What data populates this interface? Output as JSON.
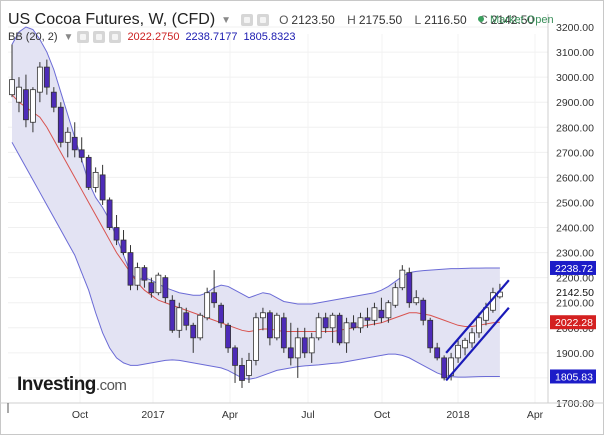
{
  "header": {
    "title": "US Cocoa Futures, W, (CFD)",
    "ohlc": [
      {
        "k": "O",
        "v": "2123.50"
      },
      {
        "k": "H",
        "v": "2175.50"
      },
      {
        "k": "L",
        "v": "2116.50"
      },
      {
        "k": "C",
        "v": "2142.50"
      }
    ],
    "market_status": "Market Open",
    "bb_label": "BB (20, 2)",
    "bb_basis": "2022.2750",
    "bb_upper": "2238.7177",
    "bb_lower": "1805.8323"
  },
  "logo": {
    "name": "Investing",
    "suffix": ".com"
  },
  "colors": {
    "bull": "#ffffff",
    "bear": "#4d2bb8",
    "band_fill": "#e3e3f3",
    "band_line": "#6b6bd6",
    "basis_line": "#d9534f",
    "trend_line": "#1a1ab8",
    "market_dot": "#3aa05e"
  },
  "chart_data": {
    "type": "candlestick",
    "title": "US Cocoa Futures, W, (CFD)",
    "x_tick_labels": [
      {
        "label": "Oct",
        "date": "2016-10"
      },
      {
        "label": "2017",
        "date": "2017-01"
      },
      {
        "label": "Apr",
        "date": "2017-04"
      },
      {
        "label": "Jul",
        "date": "2017-07"
      },
      {
        "label": "Oct",
        "date": "2017-10"
      },
      {
        "label": "2018",
        "date": "2018-01"
      },
      {
        "label": "Apr",
        "date": "2018-04"
      }
    ],
    "y_ticks": [
      1700,
      1800,
      1900,
      2000,
      2100,
      2200,
      2300,
      2400,
      2500,
      2600,
      2700,
      2800,
      2900,
      3000,
      3100,
      3200
    ],
    "ylim": [
      1650,
      3265
    ],
    "price_markers": [
      {
        "label": "2238.72",
        "value": 2238.72,
        "kind": "bb_upper"
      },
      {
        "label": "2142.50",
        "value": 2142.5,
        "kind": "last"
      },
      {
        "label": "2022.28",
        "value": 2022.28,
        "kind": "bb_basis"
      },
      {
        "label": "1805.83",
        "value": 1805.83,
        "kind": "bb_lower"
      }
    ],
    "candles": [
      {
        "o": 2930,
        "h": 3130,
        "l": 2920,
        "c": 2990
      },
      {
        "o": 2900,
        "h": 3000,
        "l": 2860,
        "c": 2960
      },
      {
        "o": 2950,
        "h": 3010,
        "l": 2800,
        "c": 2830
      },
      {
        "o": 2820,
        "h": 2960,
        "l": 2780,
        "c": 2950
      },
      {
        "o": 2940,
        "h": 3060,
        "l": 2900,
        "c": 3040
      },
      {
        "o": 3040,
        "h": 3070,
        "l": 2930,
        "c": 2960
      },
      {
        "o": 2940,
        "h": 2960,
        "l": 2860,
        "c": 2880
      },
      {
        "o": 2880,
        "h": 2900,
        "l": 2720,
        "c": 2740
      },
      {
        "o": 2740,
        "h": 2800,
        "l": 2680,
        "c": 2780
      },
      {
        "o": 2760,
        "h": 2820,
        "l": 2680,
        "c": 2710
      },
      {
        "o": 2710,
        "h": 2760,
        "l": 2660,
        "c": 2680
      },
      {
        "o": 2680,
        "h": 2690,
        "l": 2550,
        "c": 2560
      },
      {
        "o": 2560,
        "h": 2640,
        "l": 2540,
        "c": 2620
      },
      {
        "o": 2610,
        "h": 2650,
        "l": 2490,
        "c": 2510
      },
      {
        "o": 2510,
        "h": 2520,
        "l": 2390,
        "c": 2400
      },
      {
        "o": 2400,
        "h": 2450,
        "l": 2330,
        "c": 2350
      },
      {
        "o": 2350,
        "h": 2390,
        "l": 2290,
        "c": 2300
      },
      {
        "o": 2300,
        "h": 2330,
        "l": 2150,
        "c": 2170
      },
      {
        "o": 2170,
        "h": 2260,
        "l": 2150,
        "c": 2240
      },
      {
        "o": 2240,
        "h": 2250,
        "l": 2160,
        "c": 2190
      },
      {
        "o": 2180,
        "h": 2200,
        "l": 2120,
        "c": 2140
      },
      {
        "o": 2140,
        "h": 2220,
        "l": 2130,
        "c": 2210
      },
      {
        "o": 2200,
        "h": 2210,
        "l": 2100,
        "c": 2120
      },
      {
        "o": 2110,
        "h": 2130,
        "l": 1980,
        "c": 1990
      },
      {
        "o": 1990,
        "h": 2100,
        "l": 1960,
        "c": 2080
      },
      {
        "o": 2060,
        "h": 2080,
        "l": 1990,
        "c": 2010
      },
      {
        "o": 2010,
        "h": 2020,
        "l": 1900,
        "c": 1960
      },
      {
        "o": 1960,
        "h": 2060,
        "l": 1950,
        "c": 2050
      },
      {
        "o": 2040,
        "h": 2160,
        "l": 2030,
        "c": 2140
      },
      {
        "o": 2140,
        "h": 2230,
        "l": 2080,
        "c": 2100
      },
      {
        "o": 2090,
        "h": 2100,
        "l": 2000,
        "c": 2020
      },
      {
        "o": 2010,
        "h": 2020,
        "l": 1900,
        "c": 1920
      },
      {
        "o": 1920,
        "h": 1930,
        "l": 1780,
        "c": 1850
      },
      {
        "o": 1850,
        "h": 1880,
        "l": 1760,
        "c": 1790
      },
      {
        "o": 1810,
        "h": 1900,
        "l": 1780,
        "c": 1870
      },
      {
        "o": 1870,
        "h": 2060,
        "l": 1850,
        "c": 2040
      },
      {
        "o": 2040,
        "h": 2080,
        "l": 1990,
        "c": 2060
      },
      {
        "o": 2060,
        "h": 2070,
        "l": 1930,
        "c": 1960
      },
      {
        "o": 1960,
        "h": 2060,
        "l": 1950,
        "c": 2050
      },
      {
        "o": 2040,
        "h": 2060,
        "l": 1900,
        "c": 1920
      },
      {
        "o": 1920,
        "h": 2020,
        "l": 1850,
        "c": 1880
      },
      {
        "o": 1880,
        "h": 2000,
        "l": 1800,
        "c": 1960
      },
      {
        "o": 1960,
        "h": 2000,
        "l": 1880,
        "c": 1900
      },
      {
        "o": 1900,
        "h": 1980,
        "l": 1860,
        "c": 1960
      },
      {
        "o": 1960,
        "h": 2060,
        "l": 1950,
        "c": 2040
      },
      {
        "o": 2040,
        "h": 2060,
        "l": 1980,
        "c": 2000
      },
      {
        "o": 2000,
        "h": 2060,
        "l": 1940,
        "c": 2050
      },
      {
        "o": 2050,
        "h": 2060,
        "l": 1930,
        "c": 1940
      },
      {
        "o": 1940,
        "h": 2040,
        "l": 1900,
        "c": 2020
      },
      {
        "o": 2020,
        "h": 2050,
        "l": 1990,
        "c": 2000
      },
      {
        "o": 2000,
        "h": 2060,
        "l": 1980,
        "c": 2040
      },
      {
        "o": 2040,
        "h": 2080,
        "l": 2000,
        "c": 2030
      },
      {
        "o": 2030,
        "h": 2100,
        "l": 2010,
        "c": 2080
      },
      {
        "o": 2070,
        "h": 2120,
        "l": 2020,
        "c": 2040
      },
      {
        "o": 2040,
        "h": 2110,
        "l": 2020,
        "c": 2100
      },
      {
        "o": 2090,
        "h": 2180,
        "l": 2080,
        "c": 2160
      },
      {
        "o": 2160,
        "h": 2250,
        "l": 2150,
        "c": 2230
      },
      {
        "o": 2220,
        "h": 2240,
        "l": 2080,
        "c": 2100
      },
      {
        "o": 2100,
        "h": 2150,
        "l": 2090,
        "c": 2120
      },
      {
        "o": 2110,
        "h": 2120,
        "l": 2010,
        "c": 2030
      },
      {
        "o": 2030,
        "h": 2040,
        "l": 1900,
        "c": 1920
      },
      {
        "o": 1920,
        "h": 1940,
        "l": 1870,
        "c": 1880
      },
      {
        "o": 1880,
        "h": 1890,
        "l": 1790,
        "c": 1800
      },
      {
        "o": 1810,
        "h": 1900,
        "l": 1790,
        "c": 1880
      },
      {
        "o": 1880,
        "h": 1950,
        "l": 1860,
        "c": 1930
      },
      {
        "o": 1920,
        "h": 1960,
        "l": 1890,
        "c": 1950
      },
      {
        "o": 1940,
        "h": 2000,
        "l": 1920,
        "c": 1980
      },
      {
        "o": 1980,
        "h": 2060,
        "l": 1960,
        "c": 2040
      },
      {
        "o": 2030,
        "h": 2100,
        "l": 2010,
        "c": 2080
      },
      {
        "o": 2070,
        "h": 2160,
        "l": 2060,
        "c": 2140
      },
      {
        "o": 2123.5,
        "h": 2175.5,
        "l": 2116.5,
        "c": 2142.5
      }
    ],
    "bollinger": {
      "period": 20,
      "stddev": 2,
      "upper": [
        3130,
        3180,
        3200,
        3190,
        3150,
        3100,
        3030,
        2940,
        2850,
        2760,
        2670,
        2580,
        2520,
        2480,
        2430,
        2360,
        2290,
        2220,
        2190,
        2200,
        2190,
        2175,
        2160,
        2150,
        2140,
        2135,
        2130,
        2130,
        2140,
        2160,
        2170,
        2165,
        2150,
        2135,
        2120,
        2130,
        2140,
        2135,
        2120,
        2105,
        2100,
        2095,
        2095,
        2095,
        2100,
        2105,
        2110,
        2115,
        2120,
        2125,
        2130,
        2135,
        2140,
        2150,
        2165,
        2185,
        2205,
        2220,
        2225,
        2228,
        2230,
        2232,
        2234,
        2236,
        2236,
        2237,
        2238,
        2238,
        2238.5,
        2238.6,
        2238.7177
      ],
      "basis": [
        2930,
        2900,
        2880,
        2860,
        2840,
        2800,
        2750,
        2700,
        2650,
        2600,
        2550,
        2500,
        2450,
        2400,
        2350,
        2300,
        2260,
        2220,
        2180,
        2150,
        2130,
        2110,
        2100,
        2090,
        2080,
        2070,
        2060,
        2050,
        2040,
        2030,
        2020,
        2010,
        2000,
        1990,
        1985,
        1990,
        1995,
        1995,
        1990,
        1985,
        1985,
        1985,
        1985,
        1985,
        1985,
        1985,
        1985,
        1990,
        1995,
        2000,
        2005,
        2010,
        2015,
        2020,
        2030,
        2040,
        2050,
        2060,
        2060,
        2055,
        2050,
        2040,
        2030,
        2020,
        2010,
        2005,
        2005,
        2010,
        2015,
        2020,
        2022.275
      ],
      "lower": [
        2740,
        2690,
        2640,
        2590,
        2540,
        2490,
        2440,
        2390,
        2340,
        2290,
        2220,
        2150,
        2060,
        1980,
        1920,
        1880,
        1860,
        1850,
        1850,
        1855,
        1860,
        1865,
        1870,
        1872,
        1870,
        1865,
        1860,
        1855,
        1850,
        1845,
        1840,
        1830,
        1815,
        1800,
        1795,
        1800,
        1810,
        1820,
        1830,
        1835,
        1840,
        1845,
        1848,
        1850,
        1852,
        1855,
        1858,
        1860,
        1865,
        1870,
        1875,
        1880,
        1885,
        1890,
        1895,
        1895,
        1890,
        1880,
        1865,
        1850,
        1835,
        1820,
        1810,
        1805,
        1803,
        1803,
        1804,
        1805,
        1805.5,
        1805.7,
        1805.8323
      ]
    },
    "trend_channel": [
      {
        "from": 62,
        "from_value": 1790,
        "to": 71,
        "to_value": 2080
      },
      {
        "from": 62,
        "from_value": 1900,
        "to": 71,
        "to_value": 2190
      }
    ]
  }
}
